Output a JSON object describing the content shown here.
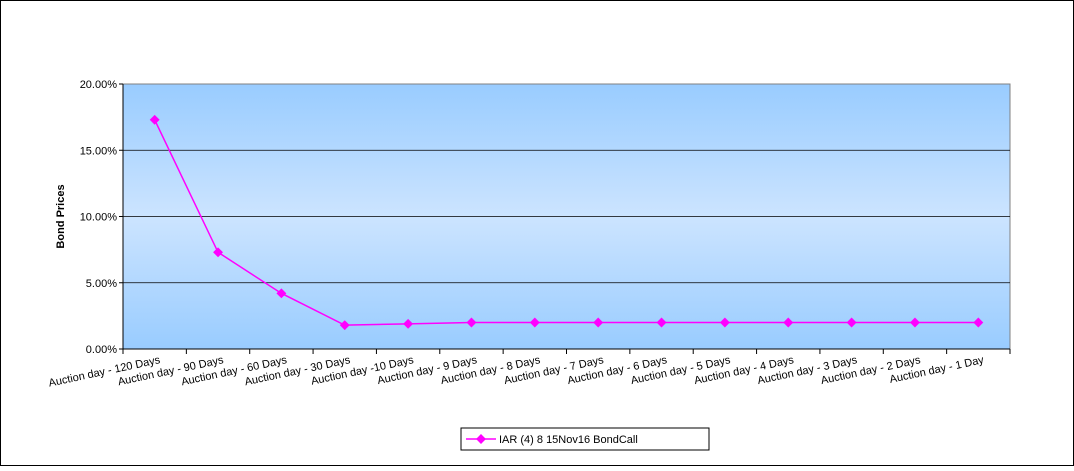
{
  "chart_data": {
    "type": "line",
    "title": "",
    "xlabel": "",
    "ylabel": "Bond Prices",
    "ylim": [
      0,
      0.2
    ],
    "yticks": [
      0,
      0.05,
      0.1,
      0.15,
      0.2
    ],
    "ytick_labels": [
      "0.00%",
      "5.00%",
      "10.00%",
      "15.00%",
      "20.00%"
    ],
    "grid": true,
    "legend_position": "bottom-center",
    "categories": [
      "Auction day - 120 Days",
      "Auction day - 90 Days",
      "Auction day - 60 Days",
      "Auction day - 30 Days",
      "Auction day -10 Days",
      "Auction day - 9 Days",
      "Auction day - 8 Days",
      "Auction day - 7 Days",
      "Auction day - 6 Days",
      "Auction day - 5 Days",
      "Auction day - 4 Days",
      "Auction day - 3 Days",
      "Auction day - 2 Days",
      "Auction day - 1 Day"
    ],
    "series": [
      {
        "name": "IAR (4) 8 15Nov16 BondCall",
        "color": "#ff00ff",
        "values": [
          0.173,
          0.073,
          0.042,
          0.018,
          0.019,
          0.02,
          0.02,
          0.02,
          0.02,
          0.02,
          0.02,
          0.02,
          0.02,
          0.02
        ]
      }
    ],
    "plot_background_top": "#99ccff",
    "plot_background_mid": "#cce4ff"
  }
}
